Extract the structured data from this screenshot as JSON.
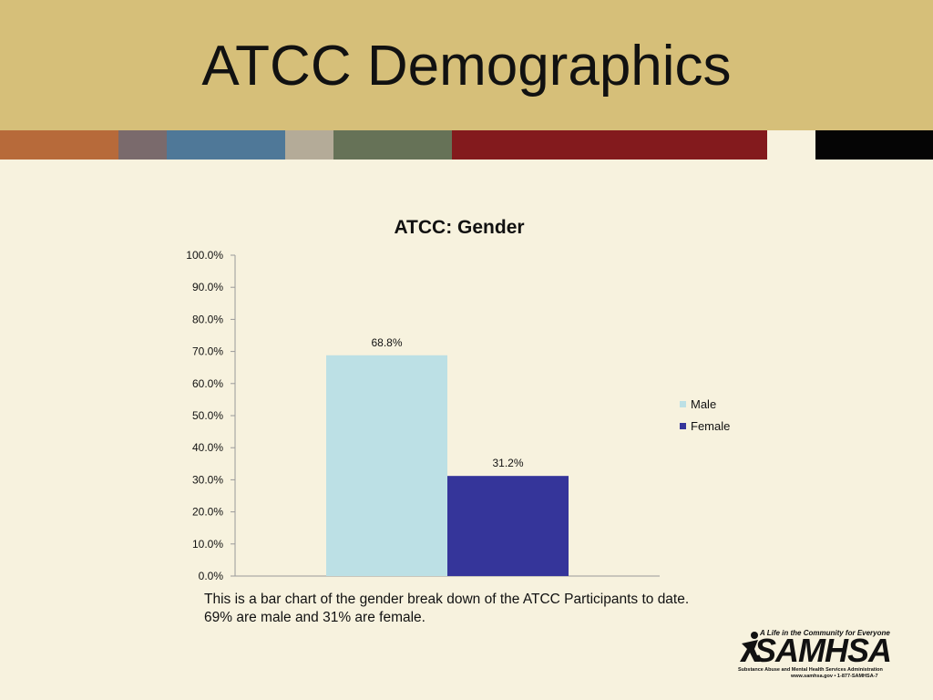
{
  "slide": {
    "title": "ATCC Demographics",
    "caption_line1": "This is a bar chart of the gender break down of the ATCC Participants to date.",
    "caption_line2": "69% are male and 31% are female."
  },
  "stripe_colors": [
    "#b76a3a",
    "#7a6a6c",
    "#4f7898",
    "#b4ab98",
    "#667257",
    "#831a1d",
    "#f7f2de",
    "#050505"
  ],
  "chart_data": {
    "type": "bar",
    "title": "ATCC: Gender",
    "categories": [
      ""
    ],
    "series": [
      {
        "name": "Male",
        "values": [
          68.8
        ],
        "label": "68.8%",
        "color": "#bce0e5"
      },
      {
        "name": "Female",
        "values": [
          31.2
        ],
        "label": "31.2%",
        "color": "#35359a"
      }
    ],
    "ylim": [
      0,
      100
    ],
    "y_ticks": [
      0,
      10,
      20,
      30,
      40,
      50,
      60,
      70,
      80,
      90,
      100
    ],
    "y_tick_labels": [
      "0.0%",
      "10.0%",
      "20.0%",
      "30.0%",
      "40.0%",
      "50.0%",
      "60.0%",
      "70.0%",
      "80.0%",
      "90.0%",
      "100.0%"
    ],
    "xlabel": "",
    "ylabel": "",
    "grid": false,
    "legend_position": "right"
  },
  "logo": {
    "tagline": "A Life in the Community for Everyone",
    "wordmark": "SAMHSA",
    "subtitle": "Substance Abuse and Mental Health Services Administration",
    "contact": "www.samhsa.gov • 1-877-SAMHSA-7"
  }
}
